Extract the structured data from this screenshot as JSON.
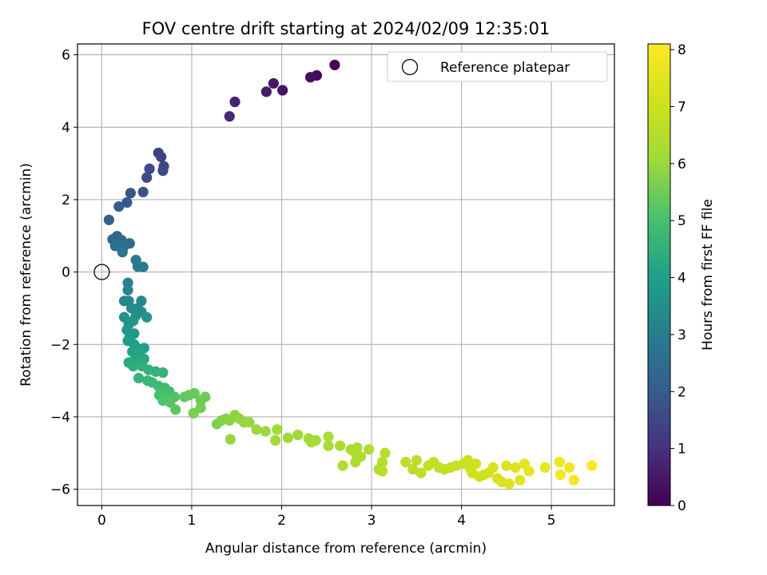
{
  "chart_data": {
    "type": "scatter",
    "title": "FOV centre drift starting at 2024/02/09 12:35:01",
    "xlabel": "Angular distance from reference (arcmin)",
    "ylabel": "Rotation from reference (arcmin)",
    "xlim": [
      -0.27,
      5.7
    ],
    "ylim": [
      -6.45,
      6.3
    ],
    "xticks": [
      0,
      1,
      2,
      3,
      4,
      5
    ],
    "yticks": [
      -6,
      -4,
      -2,
      0,
      2,
      4,
      6
    ],
    "grid": true,
    "legend": {
      "position": "upper-right",
      "entries": [
        "Reference platepar"
      ]
    },
    "colorbar": {
      "label": "Hours from first FF file",
      "colormap": "viridis",
      "range": [
        0,
        8.1
      ],
      "ticks": [
        0,
        1,
        2,
        3,
        4,
        5,
        6,
        7,
        8
      ]
    },
    "reference_point": {
      "x": 0,
      "y": 0,
      "label": "Reference platepar"
    },
    "points": [
      {
        "x": 2.59,
        "y": 5.72,
        "t": 0.05
      },
      {
        "x": 2.39,
        "y": 5.43,
        "t": 0.15
      },
      {
        "x": 2.32,
        "y": 5.38,
        "t": 0.25
      },
      {
        "x": 2.01,
        "y": 5.02,
        "t": 0.35
      },
      {
        "x": 1.91,
        "y": 5.21,
        "t": 0.45
      },
      {
        "x": 1.83,
        "y": 4.98,
        "t": 0.55
      },
      {
        "x": 1.48,
        "y": 4.7,
        "t": 0.7
      },
      {
        "x": 1.42,
        "y": 4.3,
        "t": 0.85
      },
      {
        "x": 0.63,
        "y": 3.29,
        "t": 1.4
      },
      {
        "x": 0.66,
        "y": 3.18,
        "t": 1.45
      },
      {
        "x": 0.69,
        "y": 2.92,
        "t": 1.5
      },
      {
        "x": 0.68,
        "y": 2.8,
        "t": 1.55
      },
      {
        "x": 0.53,
        "y": 2.85,
        "t": 1.6
      },
      {
        "x": 0.5,
        "y": 2.61,
        "t": 1.65
      },
      {
        "x": 0.46,
        "y": 2.21,
        "t": 1.75
      },
      {
        "x": 0.32,
        "y": 2.18,
        "t": 1.85
      },
      {
        "x": 0.28,
        "y": 1.92,
        "t": 1.95
      },
      {
        "x": 0.19,
        "y": 1.81,
        "t": 2.05
      },
      {
        "x": 0.08,
        "y": 1.44,
        "t": 2.15
      },
      {
        "x": 0.17,
        "y": 0.99,
        "t": 2.3
      },
      {
        "x": 0.12,
        "y": 0.9,
        "t": 2.35
      },
      {
        "x": 0.22,
        "y": 0.88,
        "t": 2.4
      },
      {
        "x": 0.18,
        "y": 0.82,
        "t": 2.45
      },
      {
        "x": 0.31,
        "y": 0.79,
        "t": 2.5
      },
      {
        "x": 0.15,
        "y": 0.72,
        "t": 2.55
      },
      {
        "x": 0.24,
        "y": 0.68,
        "t": 2.6
      },
      {
        "x": 0.23,
        "y": 0.55,
        "t": 2.65
      },
      {
        "x": 0.38,
        "y": 0.33,
        "t": 2.8
      },
      {
        "x": 0.4,
        "y": 0.15,
        "t": 2.85
      },
      {
        "x": 0.46,
        "y": 0.14,
        "t": 2.9
      },
      {
        "x": 0.29,
        "y": -0.3,
        "t": 3.1
      },
      {
        "x": 0.29,
        "y": -0.5,
        "t": 3.15
      },
      {
        "x": 0.25,
        "y": -0.8,
        "t": 3.2
      },
      {
        "x": 0.3,
        "y": -0.8,
        "t": 3.25
      },
      {
        "x": 0.44,
        "y": -0.8,
        "t": 3.3
      },
      {
        "x": 0.33,
        "y": -1.0,
        "t": 3.35
      },
      {
        "x": 0.4,
        "y": -1.0,
        "t": 3.4
      },
      {
        "x": 0.44,
        "y": -1.1,
        "t": 3.45
      },
      {
        "x": 0.38,
        "y": -1.2,
        "t": 3.5
      },
      {
        "x": 0.25,
        "y": -1.25,
        "t": 3.55
      },
      {
        "x": 0.5,
        "y": -1.25,
        "t": 3.6
      },
      {
        "x": 0.35,
        "y": -1.35,
        "t": 3.65
      },
      {
        "x": 0.3,
        "y": -1.45,
        "t": 3.7
      },
      {
        "x": 0.28,
        "y": -1.6,
        "t": 3.75
      },
      {
        "x": 0.36,
        "y": -1.7,
        "t": 3.8
      },
      {
        "x": 0.31,
        "y": -1.8,
        "t": 3.85
      },
      {
        "x": 0.29,
        "y": -1.9,
        "t": 3.9
      },
      {
        "x": 0.36,
        "y": -2.0,
        "t": 3.95
      },
      {
        "x": 0.39,
        "y": -2.1,
        "t": 4.0
      },
      {
        "x": 0.47,
        "y": -2.1,
        "t": 4.05
      },
      {
        "x": 0.34,
        "y": -2.2,
        "t": 4.1
      },
      {
        "x": 0.42,
        "y": -2.25,
        "t": 4.15
      },
      {
        "x": 0.38,
        "y": -2.35,
        "t": 4.2
      },
      {
        "x": 0.47,
        "y": -2.4,
        "t": 4.25
      },
      {
        "x": 0.3,
        "y": -2.5,
        "t": 4.3
      },
      {
        "x": 0.4,
        "y": -2.55,
        "t": 4.35
      },
      {
        "x": 0.35,
        "y": -2.6,
        "t": 4.4
      },
      {
        "x": 0.45,
        "y": -2.6,
        "t": 4.45
      },
      {
        "x": 0.52,
        "y": -2.7,
        "t": 4.5
      },
      {
        "x": 0.6,
        "y": -2.75,
        "t": 4.55
      },
      {
        "x": 0.68,
        "y": -2.78,
        "t": 4.6
      },
      {
        "x": 0.41,
        "y": -2.93,
        "t": 4.65
      },
      {
        "x": 0.51,
        "y": -3.0,
        "t": 4.7
      },
      {
        "x": 0.56,
        "y": -3.05,
        "t": 4.75
      },
      {
        "x": 0.63,
        "y": -3.15,
        "t": 4.8
      },
      {
        "x": 0.7,
        "y": -3.2,
        "t": 4.85
      },
      {
        "x": 0.66,
        "y": -3.3,
        "t": 4.9
      },
      {
        "x": 0.75,
        "y": -3.3,
        "t": 4.95
      },
      {
        "x": 0.64,
        "y": -3.4,
        "t": 5.0
      },
      {
        "x": 0.7,
        "y": -3.45,
        "t": 5.05
      },
      {
        "x": 0.81,
        "y": -3.45,
        "t": 5.1
      },
      {
        "x": 0.68,
        "y": -3.55,
        "t": 5.15
      },
      {
        "x": 0.76,
        "y": -3.6,
        "t": 5.2
      },
      {
        "x": 0.82,
        "y": -3.8,
        "t": 5.25
      },
      {
        "x": 0.92,
        "y": -3.45,
        "t": 5.3
      },
      {
        "x": 0.97,
        "y": -3.4,
        "t": 5.35
      },
      {
        "x": 1.03,
        "y": -3.35,
        "t": 5.4
      },
      {
        "x": 1.1,
        "y": -3.55,
        "t": 5.45
      },
      {
        "x": 1.15,
        "y": -3.45,
        "t": 5.5
      },
      {
        "x": 1.1,
        "y": -3.75,
        "t": 5.55
      },
      {
        "x": 1.02,
        "y": -3.9,
        "t": 5.6
      },
      {
        "x": 1.28,
        "y": -4.2,
        "t": 5.65
      },
      {
        "x": 1.33,
        "y": -4.1,
        "t": 5.7
      },
      {
        "x": 1.38,
        "y": -4.05,
        "t": 5.75
      },
      {
        "x": 1.42,
        "y": -4.1,
        "t": 5.8
      },
      {
        "x": 1.48,
        "y": -3.95,
        "t": 5.85
      },
      {
        "x": 1.53,
        "y": -4.05,
        "t": 5.9
      },
      {
        "x": 1.58,
        "y": -4.15,
        "t": 5.92
      },
      {
        "x": 1.64,
        "y": -4.15,
        "t": 5.95
      },
      {
        "x": 1.43,
        "y": -4.62,
        "t": 5.97
      },
      {
        "x": 1.72,
        "y": -4.35,
        "t": 6.0
      },
      {
        "x": 1.82,
        "y": -4.4,
        "t": 6.02
      },
      {
        "x": 1.95,
        "y": -4.35,
        "t": 6.05
      },
      {
        "x": 1.93,
        "y": -4.65,
        "t": 6.07
      },
      {
        "x": 2.07,
        "y": -4.58,
        "t": 6.1
      },
      {
        "x": 2.18,
        "y": -4.5,
        "t": 6.12
      },
      {
        "x": 2.3,
        "y": -4.6,
        "t": 6.15
      },
      {
        "x": 2.33,
        "y": -4.7,
        "t": 6.18
      },
      {
        "x": 2.38,
        "y": -4.65,
        "t": 6.2
      },
      {
        "x": 2.52,
        "y": -4.55,
        "t": 6.22
      },
      {
        "x": 2.52,
        "y": -4.8,
        "t": 6.25
      },
      {
        "x": 2.65,
        "y": -4.8,
        "t": 6.28
      },
      {
        "x": 2.77,
        "y": -4.9,
        "t": 6.3
      },
      {
        "x": 2.84,
        "y": -4.85,
        "t": 6.32
      },
      {
        "x": 2.82,
        "y": -5.0,
        "t": 6.35
      },
      {
        "x": 2.88,
        "y": -5.1,
        "t": 6.38
      },
      {
        "x": 2.97,
        "y": -4.9,
        "t": 6.4
      },
      {
        "x": 2.82,
        "y": -5.25,
        "t": 6.42
      },
      {
        "x": 2.68,
        "y": -5.35,
        "t": 6.45
      },
      {
        "x": 3.08,
        "y": -5.45,
        "t": 6.5
      },
      {
        "x": 3.12,
        "y": -5.25,
        "t": 6.52
      },
      {
        "x": 3.15,
        "y": -5.0,
        "t": 6.55
      },
      {
        "x": 3.12,
        "y": -5.5,
        "t": 6.58
      },
      {
        "x": 3.38,
        "y": -5.25,
        "t": 6.62
      },
      {
        "x": 3.46,
        "y": -5.45,
        "t": 6.65
      },
      {
        "x": 3.5,
        "y": -5.2,
        "t": 6.68
      },
      {
        "x": 3.55,
        "y": -5.55,
        "t": 6.7
      },
      {
        "x": 3.63,
        "y": -5.35,
        "t": 6.75
      },
      {
        "x": 3.69,
        "y": -5.25,
        "t": 6.78
      },
      {
        "x": 3.75,
        "y": -5.4,
        "t": 6.82
      },
      {
        "x": 3.81,
        "y": -5.45,
        "t": 6.85
      },
      {
        "x": 3.88,
        "y": -5.4,
        "t": 6.88
      },
      {
        "x": 3.94,
        "y": -5.35,
        "t": 6.92
      },
      {
        "x": 4.02,
        "y": -5.3,
        "t": 6.95
      },
      {
        "x": 4.07,
        "y": -5.2,
        "t": 6.98
      },
      {
        "x": 4.1,
        "y": -5.45,
        "t": 7.0
      },
      {
        "x": 4.12,
        "y": -5.55,
        "t": 7.03
      },
      {
        "x": 4.16,
        "y": -5.3,
        "t": 7.06
      },
      {
        "x": 4.2,
        "y": -5.65,
        "t": 7.1
      },
      {
        "x": 4.25,
        "y": -5.6,
        "t": 7.12
      },
      {
        "x": 4.3,
        "y": -5.55,
        "t": 7.15
      },
      {
        "x": 4.35,
        "y": -5.4,
        "t": 7.2
      },
      {
        "x": 4.4,
        "y": -5.7,
        "t": 7.25
      },
      {
        "x": 4.45,
        "y": -5.8,
        "t": 7.3
      },
      {
        "x": 4.5,
        "y": -5.35,
        "t": 7.35
      },
      {
        "x": 4.53,
        "y": -5.85,
        "t": 7.4
      },
      {
        "x": 4.6,
        "y": -5.4,
        "t": 7.45
      },
      {
        "x": 4.65,
        "y": -5.75,
        "t": 7.5
      },
      {
        "x": 4.7,
        "y": -5.3,
        "t": 7.55
      },
      {
        "x": 4.75,
        "y": -5.5,
        "t": 7.6
      },
      {
        "x": 4.93,
        "y": -5.4,
        "t": 7.7
      },
      {
        "x": 5.09,
        "y": -5.25,
        "t": 7.8
      },
      {
        "x": 5.1,
        "y": -5.6,
        "t": 7.85
      },
      {
        "x": 5.2,
        "y": -5.4,
        "t": 7.9
      },
      {
        "x": 5.25,
        "y": -5.75,
        "t": 7.95
      },
      {
        "x": 5.45,
        "y": -5.35,
        "t": 8.05
      }
    ]
  }
}
